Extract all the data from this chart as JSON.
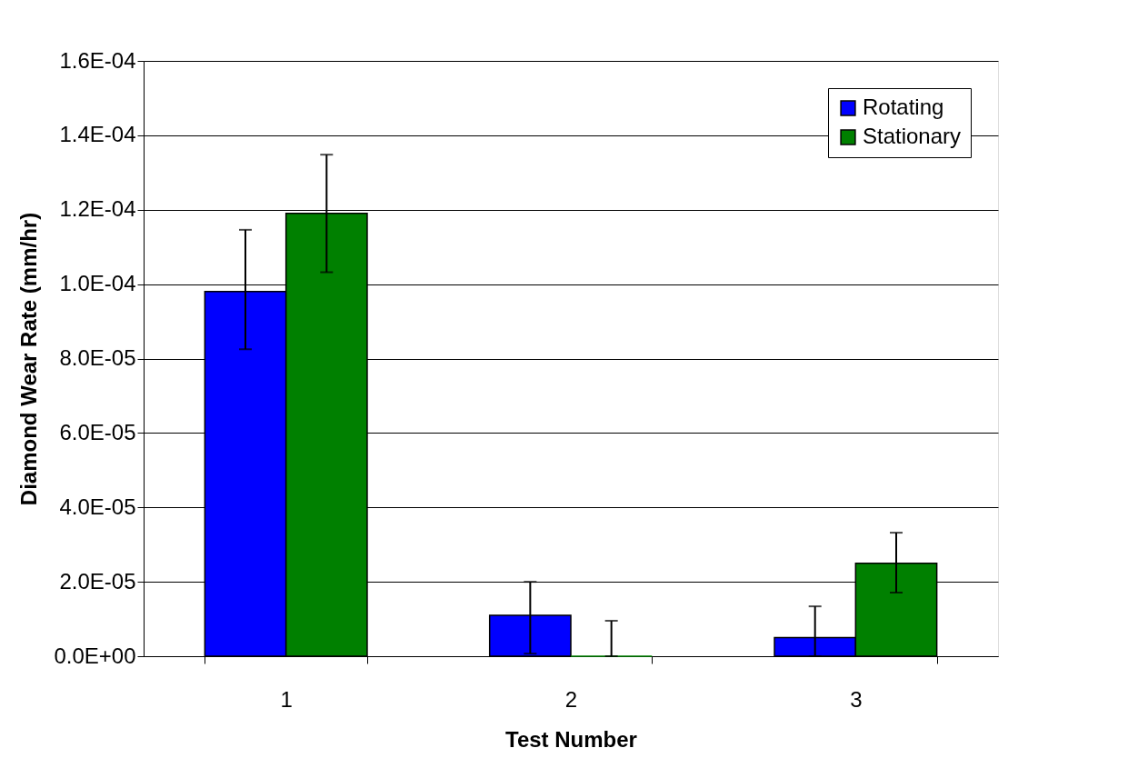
{
  "chart_data": {
    "type": "bar",
    "xlabel": "Test Number",
    "ylabel": "Diamond Wear Rate (mm/hr)",
    "categories": [
      "1",
      "2",
      "3"
    ],
    "series": [
      {
        "name": "Rotating",
        "color": "#0000ff",
        "values": [
          9.8e-05,
          1.1e-05,
          5e-06
        ],
        "errors": [
          [
            8.25e-05,
            0.0001146
          ],
          [
            7e-07,
            2e-05
          ],
          [
            0,
            1.34e-05
          ]
        ]
      },
      {
        "name": "Stationary",
        "color": "#008000",
        "values": [
          0.000119,
          0,
          2.5e-05
        ],
        "errors": [
          [
            0.0001032,
            0.0001348
          ],
          [
            0,
            9.5e-06
          ],
          [
            1.71e-05,
            3.32e-05
          ]
        ]
      }
    ],
    "ylim": [
      0,
      0.00016
    ],
    "yticks": [
      {
        "value": 0,
        "label": "0.0E+00"
      },
      {
        "value": 2e-05,
        "label": "2.0E-05"
      },
      {
        "value": 4e-05,
        "label": "4.0E-05"
      },
      {
        "value": 6e-05,
        "label": "6.0E-05"
      },
      {
        "value": 8e-05,
        "label": "8.0E-05"
      },
      {
        "value": 0.0001,
        "label": "1.0E-04"
      },
      {
        "value": 0.00012,
        "label": "1.2E-04"
      },
      {
        "value": 0.00014,
        "label": "1.4E-04"
      },
      {
        "value": 0.00016,
        "label": "1.6E-04"
      }
    ],
    "grid": "y",
    "legend": "top right"
  }
}
